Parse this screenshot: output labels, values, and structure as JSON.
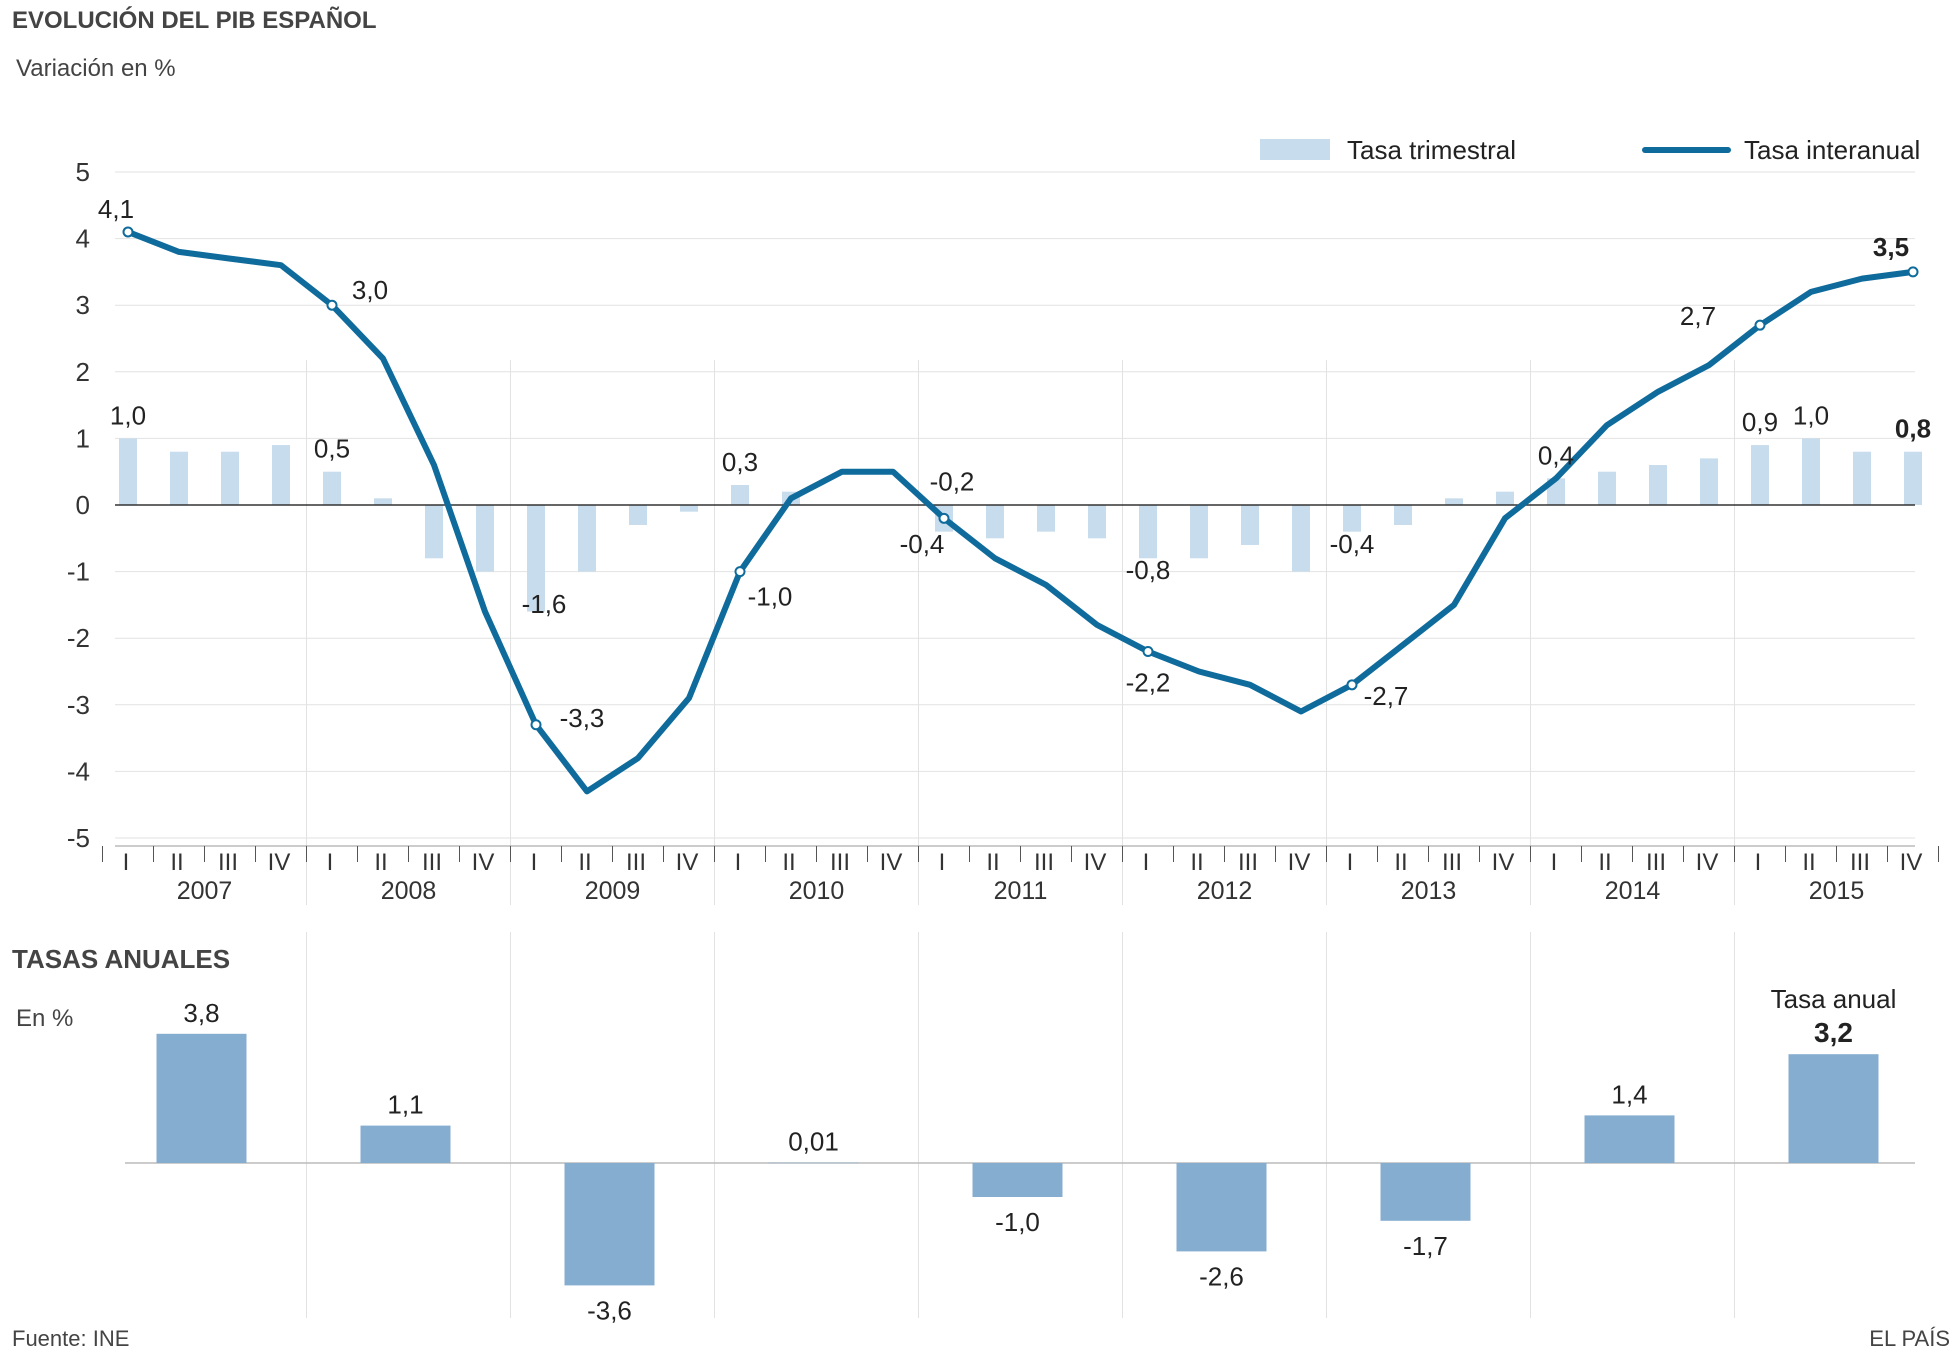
{
  "header": {
    "title": "EVOLUCIÓN DEL PIB ESPAÑOL",
    "subtitle": "Variación en %"
  },
  "legend": {
    "quarterly": "Tasa trimestral",
    "yoy": "Tasa interanual"
  },
  "annual_section": {
    "title": "TASAS ANUALES",
    "subtitle": "En %",
    "annual_note": "Tasa anual"
  },
  "footer": {
    "source": "Fuente: INE",
    "brand": "EL PAÍS"
  },
  "colors": {
    "line": "#0f6b9c",
    "quarterly_bar": "#c7dcec",
    "annual_bar": "#85adcf",
    "grid": "#e2e2e2"
  },
  "chart_data": [
    {
      "type": "bar+line",
      "title": "EVOLUCIÓN DEL PIB ESPAÑOL",
      "subtitle": "Variación en %",
      "ylim": [
        -5,
        5
      ],
      "yticks": [
        5,
        4,
        3,
        2,
        1,
        0,
        -1,
        -2,
        -3,
        -4,
        -5
      ],
      "grid": true,
      "legend_position": "top-right",
      "years": [
        "2007",
        "2008",
        "2009",
        "2010",
        "2011",
        "2012",
        "2013",
        "2014",
        "2015"
      ],
      "quarter_labels": [
        "I",
        "II",
        "III",
        "IV"
      ],
      "series": [
        {
          "name": "Tasa trimestral",
          "type": "bar",
          "values": [
            1.0,
            0.8,
            0.8,
            0.9,
            0.5,
            0.1,
            -0.8,
            -1.0,
            -1.6,
            -1.0,
            -0.3,
            -0.1,
            0.3,
            0.2,
            0.0,
            0.0,
            -0.4,
            -0.5,
            -0.4,
            -0.5,
            -0.8,
            -0.8,
            -0.6,
            -1.0,
            -0.4,
            -0.3,
            0.1,
            0.2,
            0.4,
            0.5,
            0.6,
            0.7,
            0.9,
            1.0,
            0.8,
            0.8
          ]
        },
        {
          "name": "Tasa interanual",
          "type": "line",
          "values": [
            4.1,
            3.8,
            3.7,
            3.6,
            3.0,
            2.2,
            0.6,
            -1.6,
            -3.3,
            -4.3,
            -3.8,
            -2.9,
            -1.0,
            0.1,
            0.5,
            0.5,
            -0.2,
            -0.8,
            -1.2,
            -1.8,
            -2.2,
            -2.5,
            -2.7,
            -3.1,
            -2.7,
            -2.1,
            -1.5,
            -0.2,
            0.4,
            1.2,
            1.7,
            2.1,
            2.7,
            3.2,
            3.4,
            3.5
          ]
        }
      ],
      "annotations": [
        {
          "series": "Tasa trimestral",
          "index": 0,
          "text": "1,0"
        },
        {
          "series": "Tasa trimestral",
          "index": 4,
          "text": "0,5"
        },
        {
          "series": "Tasa trimestral",
          "index": 8,
          "text": "-1,6"
        },
        {
          "series": "Tasa trimestral",
          "index": 12,
          "text": "0,3"
        },
        {
          "series": "Tasa trimestral",
          "index": 16,
          "text": "-0,4"
        },
        {
          "series": "Tasa trimestral",
          "index": 20,
          "text": "-0,8"
        },
        {
          "series": "Tasa trimestral",
          "index": 24,
          "text": "-0,4"
        },
        {
          "series": "Tasa trimestral",
          "index": 28,
          "text": "0,4"
        },
        {
          "series": "Tasa trimestral",
          "index": 32,
          "text": "0,9"
        },
        {
          "series": "Tasa trimestral",
          "index": 33,
          "text": "1,0"
        },
        {
          "series": "Tasa trimestral",
          "index": 35,
          "text": "0,8",
          "bold": true
        },
        {
          "series": "Tasa interanual",
          "index": 0,
          "text": "4,1"
        },
        {
          "series": "Tasa interanual",
          "index": 4,
          "text": "3,0"
        },
        {
          "series": "Tasa interanual",
          "index": 8,
          "text": "-3,3"
        },
        {
          "series": "Tasa interanual",
          "index": 12,
          "text": "-1,0"
        },
        {
          "series": "Tasa interanual",
          "index": 16,
          "text": "-0,2"
        },
        {
          "series": "Tasa interanual",
          "index": 20,
          "text": "-2,2"
        },
        {
          "series": "Tasa interanual",
          "index": 24,
          "text": "-2,7"
        },
        {
          "series": "Tasa interanual",
          "index": 32,
          "text": "2,7"
        },
        {
          "series": "Tasa interanual",
          "index": 35,
          "text": "3,5",
          "bold": true
        }
      ]
    },
    {
      "type": "bar",
      "title": "TASAS ANUALES",
      "subtitle": "En %",
      "categories": [
        "2007",
        "2008",
        "2009",
        "2010",
        "2011",
        "2012",
        "2013",
        "2014",
        "2015"
      ],
      "values": [
        3.8,
        1.1,
        -3.6,
        0.01,
        -1.0,
        -2.6,
        -1.7,
        1.4,
        3.2
      ],
      "labels": [
        "3,8",
        "1,1",
        "-3,6",
        "0,01",
        "-1,0",
        "-2,6",
        "-1,7",
        "1,4",
        "3,2"
      ]
    }
  ]
}
